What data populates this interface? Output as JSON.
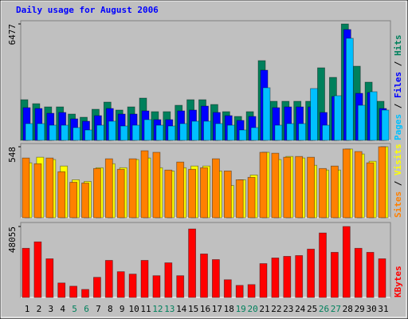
{
  "title": "Daily usage for August 2006",
  "chart_data": [
    {
      "type": "bar",
      "ylim": [
        0,
        6477
      ],
      "yticks": [
        6477
      ],
      "series": [
        {
          "name": "Pages",
          "color": "#00c0ff",
          "values": [
            932,
            932,
            843,
            843,
            710,
            577,
            843,
            1065,
            798,
            843,
            1153,
            843,
            798,
            932,
            1065,
            1065,
            932,
            843,
            577,
            710,
            2928,
            843,
            932,
            932,
            2883,
            843,
            2484,
            5678,
            1952,
            2706,
            1686
          ]
        },
        {
          "name": "Files",
          "color": "#0000ff",
          "values": [
            1819,
            1774,
            1508,
            1553,
            1198,
            1065,
            1375,
            1774,
            1464,
            1464,
            1641,
            1153,
            1153,
            1641,
            1686,
            1907,
            1553,
            1375,
            1109,
            1331,
            3904,
            1819,
            1863,
            1863,
            1863,
            1553,
            2440,
            6166,
            2617,
            2662,
            1774
          ]
        },
        {
          "name": "Hits",
          "color": "#00805c",
          "values": [
            2262,
            2041,
            1863,
            1863,
            1464,
            1286,
            1730,
            2129,
            1686,
            1863,
            2351,
            1597,
            1597,
            1952,
            2262,
            2262,
            1996,
            1597,
            1331,
            1597,
            4436,
            2174,
            2174,
            2174,
            2174,
            4037,
            3504,
            6477,
            4125,
            3238,
            2174
          ]
        }
      ]
    },
    {
      "type": "bar",
      "ylim": [
        0,
        548
      ],
      "yticks": [
        548
      ],
      "series": [
        {
          "name": "Sites",
          "color": "#ff8000",
          "values": [
            461,
            417,
            461,
            355,
            274,
            268,
            380,
            455,
            374,
            455,
            517,
            505,
            368,
            430,
            374,
            386,
            455,
            361,
            293,
            312,
            505,
            498,
            467,
            473,
            467,
            380,
            399,
            530,
            511,
            424,
            548
          ]
        },
        {
          "name": "Visits",
          "color": "#ffff00",
          "values": [
            424,
            467,
            449,
            399,
            293,
            280,
            386,
            417,
            386,
            449,
            461,
            386,
            361,
            386,
            399,
            399,
            361,
            249,
            293,
            330,
            505,
            449,
            473,
            461,
            405,
            368,
            368,
            530,
            492,
            436,
            548
          ]
        }
      ]
    },
    {
      "type": "bar",
      "ylim": [
        0,
        48055
      ],
      "yticks": [
        48055
      ],
      "categories": [
        "1",
        "2",
        "3",
        "4",
        "5",
        "6",
        "7",
        "8",
        "9",
        "10",
        "11",
        "12",
        "13",
        "14",
        "15",
        "16",
        "17",
        "18",
        "19",
        "20",
        "21",
        "22",
        "23",
        "24",
        "25",
        "26",
        "27",
        "28",
        "29",
        "30",
        "31"
      ],
      "category_colors": [
        "#000000",
        "#000000",
        "#000000",
        "#000000",
        "#00805c",
        "#00805c",
        "#000000",
        "#000000",
        "#000000",
        "#000000",
        "#000000",
        "#00805c",
        "#00805c",
        "#000000",
        "#000000",
        "#000000",
        "#000000",
        "#000000",
        "#00805c",
        "#00805c",
        "#000000",
        "#000000",
        "#000000",
        "#000000",
        "#000000",
        "#00805c",
        "#00805c",
        "#000000",
        "#000000",
        "#000000",
        "#000000"
      ],
      "series": [
        {
          "name": "KBytes",
          "color": "#ff0000",
          "values": [
            33306,
            37674,
            26208,
            9828,
            7644,
            5460,
            13650,
            25116,
            17472,
            15834,
            25116,
            14742,
            23478,
            14742,
            46410,
            29484,
            25662,
            12012,
            8190,
            8736,
            22932,
            26754,
            27846,
            28392,
            32760,
            43680,
            30576,
            48055,
            33306,
            30576,
            26208
          ]
        }
      ]
    }
  ]
}
